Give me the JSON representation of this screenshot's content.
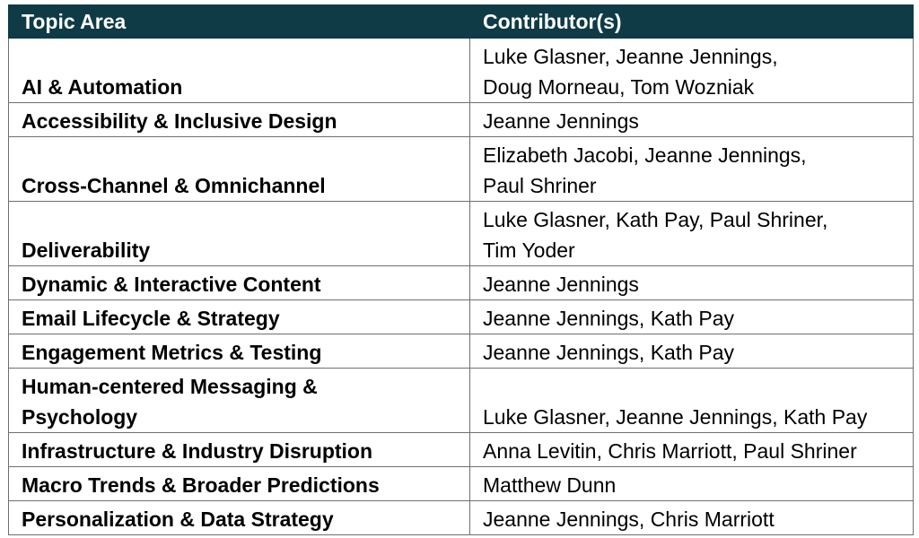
{
  "table": {
    "headers": [
      "Topic Area",
      "Contributor(s)"
    ],
    "rows": [
      {
        "topic": [
          "AI & Automation"
        ],
        "contributors": [
          "Luke Glasner, Jeanne Jennings,",
          "Doug Morneau, Tom Wozniak"
        ]
      },
      {
        "topic": [
          "Accessibility & Inclusive Design"
        ],
        "contributors": [
          "Jeanne Jennings"
        ]
      },
      {
        "topic": [
          "Cross-Channel & Omnichannel"
        ],
        "contributors": [
          "Elizabeth Jacobi, Jeanne Jennings,",
          "Paul Shriner"
        ]
      },
      {
        "topic": [
          "Deliverability"
        ],
        "contributors": [
          "Luke Glasner, Kath Pay, Paul Shriner,",
          "Tim Yoder"
        ]
      },
      {
        "topic": [
          "Dynamic & Interactive Content"
        ],
        "contributors": [
          "Jeanne Jennings"
        ]
      },
      {
        "topic": [
          "Email Lifecycle & Strategy"
        ],
        "contributors": [
          "Jeanne Jennings, Kath Pay"
        ]
      },
      {
        "topic": [
          "Engagement Metrics & Testing"
        ],
        "contributors": [
          "Jeanne Jennings, Kath Pay"
        ]
      },
      {
        "topic": [
          "Human-centered Messaging &",
          "Psychology"
        ],
        "contributors": [
          "Luke Glasner, Jeanne Jennings, Kath Pay"
        ]
      },
      {
        "topic": [
          "Infrastructure & Industry Disruption"
        ],
        "contributors": [
          "Anna Levitin, Chris Marriott, Paul Shriner"
        ]
      },
      {
        "topic": [
          "Macro Trends & Broader Predictions"
        ],
        "contributors": [
          "Matthew Dunn"
        ]
      },
      {
        "topic": [
          "Personalization & Data Strategy"
        ],
        "contributors": [
          "Jeanne Jennings, Chris Marriott"
        ]
      }
    ]
  },
  "colors": {
    "header_background": "#0e3b45",
    "header_text": "#ffffff",
    "border": "#6f6f6f"
  }
}
